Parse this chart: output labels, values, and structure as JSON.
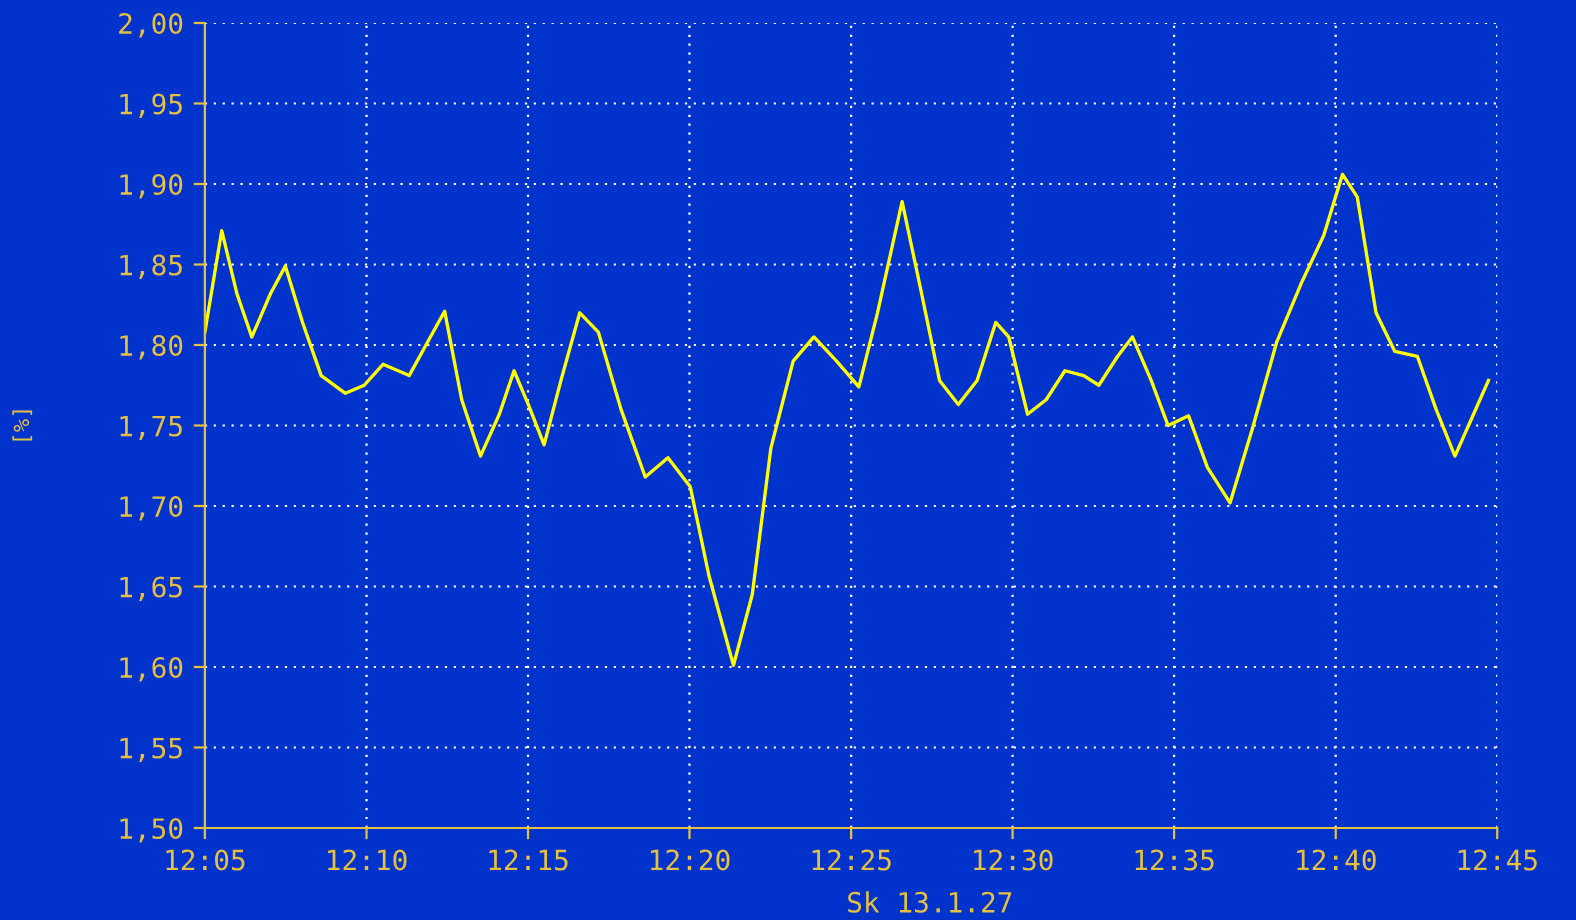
{
  "chart_data": {
    "type": "line",
    "ylabel": "[%]",
    "annotations": [
      "Sk 13.1.27"
    ],
    "x": [
      12.0833,
      12.092,
      12.0998,
      12.1075,
      12.1172,
      12.1248,
      12.1337,
      12.1433,
      12.1558,
      12.1655,
      12.1752,
      12.1887,
      12.1983,
      12.207,
      12.2158,
      12.2255,
      12.2352,
      12.2428,
      12.2505,
      12.2583,
      12.267,
      12.2767,
      12.2863,
      12.298,
      12.3105,
      12.3222,
      12.3337,
      12.3433,
      12.356,
      12.3657,
      12.3753,
      12.3868,
      12.3975,
      12.4092,
      12.4207,
      12.4303,
      12.443,
      12.4527,
      12.4623,
      12.472,
      12.4817,
      12.4913,
      12.498,
      12.5077,
      12.5173,
      12.527,
      12.5367,
      12.5445,
      12.5542,
      12.5618,
      12.5715,
      12.5802,
      12.5908,
      12.6005,
      12.6122,
      12.6237,
      12.6363,
      12.6488,
      12.6605,
      12.6702,
      12.6778,
      12.6875,
      12.6972,
      12.7088,
      12.7185,
      12.7282,
      12.7378,
      12.7455
    ],
    "series": [
      {
        "color": "#ffff00",
        "values": [
          1.808,
          1.871,
          1.832,
          1.805,
          1.832,
          1.849,
          1.814,
          1.781,
          1.77,
          1.775,
          1.788,
          1.781,
          1.802,
          1.821,
          1.766,
          1.731,
          1.757,
          1.784,
          1.762,
          1.738,
          1.778,
          1.82,
          1.808,
          1.76,
          1.718,
          1.73,
          1.712,
          1.657,
          1.601,
          1.645,
          1.736,
          1.79,
          1.805,
          1.79,
          1.774,
          1.82,
          1.889,
          1.834,
          1.778,
          1.763,
          1.778,
          1.814,
          1.805,
          1.757,
          1.766,
          1.784,
          1.781,
          1.775,
          1.793,
          1.805,
          1.778,
          1.75,
          1.756,
          1.724,
          1.702,
          1.748,
          1.802,
          1.838,
          1.868,
          1.906,
          1.892,
          1.82,
          1.796,
          1.793,
          1.76,
          1.731,
          1.757,
          1.778
        ]
      }
    ],
    "xlim": [
      12.0833,
      12.75
    ],
    "xticks": [
      {
        "value": 12.0833,
        "label": "12:05"
      },
      {
        "value": 12.1667,
        "label": "12:10"
      },
      {
        "value": 12.25,
        "label": "12:15"
      },
      {
        "value": 12.3333,
        "label": "12:20"
      },
      {
        "value": 12.4167,
        "label": "12:25"
      },
      {
        "value": 12.5,
        "label": "12:30"
      },
      {
        "value": 12.5833,
        "label": "12:35"
      },
      {
        "value": 12.6667,
        "label": "12:40"
      },
      {
        "value": 12.75,
        "label": "12:45"
      }
    ],
    "ylim": [
      1.5,
      2.0
    ],
    "yticks": [
      {
        "value": 1.5,
        "label": "1,50"
      },
      {
        "value": 1.55,
        "label": "1,55"
      },
      {
        "value": 1.6,
        "label": "1,60"
      },
      {
        "value": 1.65,
        "label": "1,65"
      },
      {
        "value": 1.7,
        "label": "1,70"
      },
      {
        "value": 1.75,
        "label": "1,75"
      },
      {
        "value": 1.8,
        "label": "1,80"
      },
      {
        "value": 1.85,
        "label": "1,85"
      },
      {
        "value": 1.9,
        "label": "1,90"
      },
      {
        "value": 1.95,
        "label": "1,95"
      },
      {
        "value": 2.0,
        "label": "2,00"
      }
    ],
    "grid": true,
    "marker": "none",
    "line_style": "solid"
  }
}
